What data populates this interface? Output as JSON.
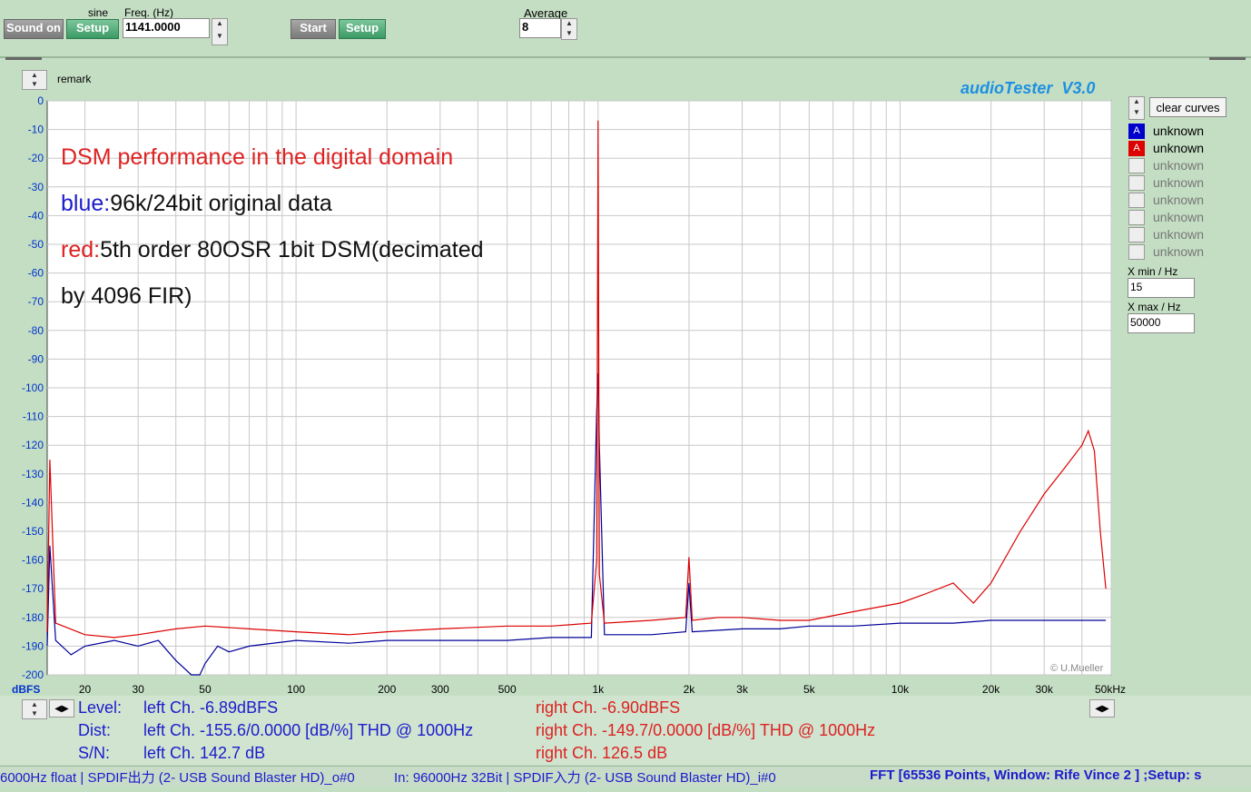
{
  "toolbar": {
    "sound_label": "Sound on",
    "sine_label": "sine",
    "setup1_label": "Setup",
    "freq_label": "Freq. (Hz)",
    "freq_value": "1141.0000",
    "start_label": "Start",
    "setup2_label": "Setup",
    "average_label": "Average",
    "average_value": "8"
  },
  "remark_label": "remark",
  "brand": "audioTester  V3.0",
  "copyright": "© U.Mueller",
  "side_panel": {
    "clear_label": "clear curves",
    "legend": [
      {
        "letter": "A",
        "label": "unknown",
        "color": "#0000cc",
        "active": true
      },
      {
        "letter": "A",
        "label": "unknown",
        "color": "#dd0000",
        "active": true
      },
      {
        "letter": "",
        "label": "unknown",
        "active": false
      },
      {
        "letter": "",
        "label": "unknown",
        "active": false
      },
      {
        "letter": "",
        "label": "unknown",
        "active": false
      },
      {
        "letter": "",
        "label": "unknown",
        "active": false
      },
      {
        "letter": "",
        "label": "unknown",
        "active": false
      },
      {
        "letter": "",
        "label": "unknown",
        "active": false
      }
    ],
    "xmin_label": "X min / Hz",
    "xmin_value": "15",
    "xmax_label": "X max / Hz",
    "xmax_value": "50000"
  },
  "annotations": {
    "line1": "DSM performance in the digital domain",
    "line2_prefix": "blue:",
    "line2_text": "96k/24bit original data",
    "line3_prefix": "red:",
    "line3_text": "5th order 80OSR 1bit DSM(decimated",
    "line4": "by 4096 FIR)"
  },
  "yunit": "dBFS",
  "xunit": "50kHz",
  "measurements": {
    "level_label": "Level:",
    "level_left": "left Ch. -6.89dBFS",
    "level_right": "right Ch. -6.90dBFS",
    "dist_label": "Dist:",
    "dist_left": "left Ch. -155.6/0.0000 [dB/%] THD @ 1000Hz",
    "dist_right": "right Ch. -149.7/0.0000 [dB/%] THD @ 1000Hz",
    "sn_label": "S/N:",
    "sn_left": "left Ch. 142.7 dB",
    "sn_right": "right Ch. 126.5 dB"
  },
  "status_bar": {
    "out": "6000Hz float  | SPDIF出力 (2- USB Sound Blaster HD)_o#0",
    "in": "In: 96000Hz 32Bit  | SPDIF入力 (2- USB Sound Blaster HD)_i#0",
    "fft": "FFT [65536 Points, Window: Rife Vince 2 ]  ;Setup: s"
  },
  "chart_data": {
    "type": "line",
    "xscale": "log",
    "xlim": [
      15,
      50000
    ],
    "ylim": [
      -200,
      0
    ],
    "yticks": [
      0,
      -10,
      -20,
      -30,
      -40,
      -50,
      -60,
      -70,
      -80,
      -90,
      -100,
      -110,
      -120,
      -130,
      -140,
      -150,
      -160,
      -170,
      -180,
      -190,
      -200
    ],
    "xticks": [
      {
        "v": 20,
        "t": "20"
      },
      {
        "v": 30,
        "t": "30"
      },
      {
        "v": 50,
        "t": "50"
      },
      {
        "v": 100,
        "t": "100"
      },
      {
        "v": 200,
        "t": "200"
      },
      {
        "v": 300,
        "t": "300"
      },
      {
        "v": 500,
        "t": "500"
      },
      {
        "v": 1000,
        "t": "1k"
      },
      {
        "v": 2000,
        "t": "2k"
      },
      {
        "v": 3000,
        "t": "3k"
      },
      {
        "v": 5000,
        "t": "5k"
      },
      {
        "v": 10000,
        "t": "10k"
      },
      {
        "v": 20000,
        "t": "20k"
      },
      {
        "v": 30000,
        "t": "30k"
      }
    ],
    "grid": true,
    "series": [
      {
        "color": "#dd0000",
        "x": [
          15,
          15.3,
          16,
          20,
          25,
          30,
          40,
          50,
          70,
          100,
          150,
          200,
          300,
          500,
          700,
          950,
          990,
          1000,
          1010,
          1050,
          1500,
          1950,
          2000,
          2050,
          2500,
          3000,
          4000,
          5000,
          7000,
          10000,
          12000,
          15000,
          17500,
          20000,
          25000,
          30000,
          35000,
          40000,
          42000,
          44000,
          46000,
          48000
        ],
        "y": [
          -185,
          -125,
          -182,
          -186,
          -187,
          -186,
          -184,
          -183,
          -184,
          -185,
          -186,
          -185,
          -184,
          -183,
          -183,
          -182,
          -160,
          -6.9,
          -165,
          -182,
          -181,
          -180,
          -159,
          -181,
          -180,
          -180,
          -181,
          -181,
          -178,
          -175,
          -172,
          -168,
          -175,
          -168,
          -150,
          -137,
          -128,
          -120,
          -115,
          -122,
          -150,
          -170
        ]
      },
      {
        "color": "#000099",
        "x": [
          15,
          15.3,
          16,
          18,
          20,
          25,
          30,
          35,
          40,
          45,
          48,
          50,
          55,
          60,
          70,
          100,
          150,
          200,
          300,
          500,
          700,
          950,
          990,
          1000,
          1010,
          1050,
          1500,
          1950,
          2000,
          2050,
          3000,
          4000,
          5000,
          7000,
          10000,
          15000,
          20000,
          30000,
          40000,
          48000
        ],
        "y": [
          -190,
          -155,
          -188,
          -193,
          -190,
          -188,
          -190,
          -188,
          -195,
          -200,
          -200,
          -196,
          -190,
          -192,
          -190,
          -188,
          -189,
          -188,
          -188,
          -188,
          -187,
          -187,
          -108,
          -95,
          -120,
          -186,
          -186,
          -185,
          -168,
          -185,
          -184,
          -184,
          -183,
          -183,
          -182,
          -182,
          -181,
          -181,
          -181,
          -181
        ]
      }
    ]
  }
}
